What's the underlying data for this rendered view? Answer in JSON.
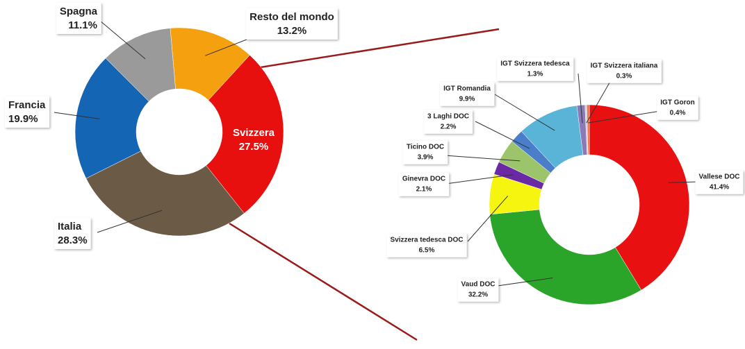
{
  "chart_data": [
    {
      "type": "donut",
      "categories": [
        "Resto del mondo",
        "Svizzera",
        "Italia",
        "Francia",
        "Spagna"
      ],
      "values": [
        13.2,
        27.5,
        28.3,
        19.9,
        11.1
      ],
      "value_labels": [
        "13.2%",
        "27.5%",
        "28.3%",
        "19.9%",
        "11.1%"
      ],
      "colors": [
        "#f5a00f",
        "#e8100f",
        "#6b5a45",
        "#1565b5",
        "#9a9a9a"
      ]
    },
    {
      "type": "donut",
      "categories": [
        "Vallese DOC",
        "Vaud DOC",
        "Svizzera tedesca DOC",
        "Ginevra DOC",
        "Ticino DOC",
        "3 Laghi DOC",
        "IGT Romandia",
        "IGT Svizzera tedesca",
        "IGT Svizzera italiana",
        "IGT Goron"
      ],
      "values": [
        41.4,
        32.2,
        6.5,
        2.1,
        3.9,
        2.2,
        9.9,
        1.3,
        0.3,
        0.4
      ],
      "value_labels": [
        "41.4%",
        "32.2%",
        "6.5%",
        "2.1%",
        "3.9%",
        "2.2%",
        "9.9%",
        "1.3%",
        "0.3%",
        "0.4%"
      ],
      "colors": [
        "#e81010",
        "#2aa52a",
        "#f5f50f",
        "#6a2aa5",
        "#9cc46a",
        "#4a7ec8",
        "#5ab4d8",
        "#8a7ab8",
        "#d8c8d8",
        "#e87040"
      ]
    }
  ]
}
